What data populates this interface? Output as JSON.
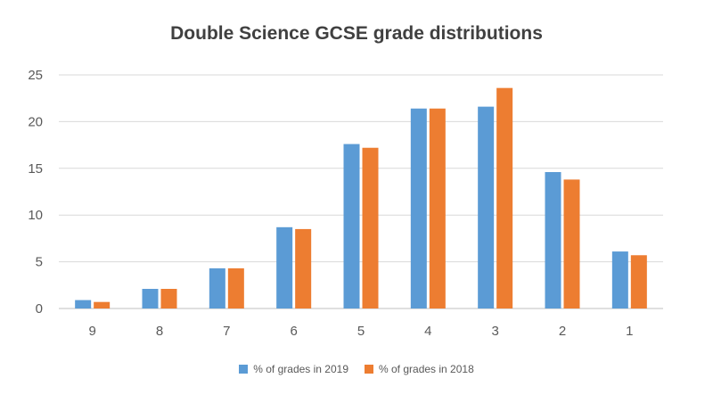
{
  "chart_data": {
    "type": "bar",
    "title": "Double Science GCSE grade distributions",
    "categories": [
      "9",
      "8",
      "7",
      "6",
      "5",
      "4",
      "3",
      "2",
      "1"
    ],
    "series": [
      {
        "name": "% of grades in 2019",
        "color": "#5b9bd5",
        "values": [
          0.9,
          2.1,
          4.3,
          8.7,
          17.6,
          21.4,
          21.6,
          14.6,
          6.1
        ]
      },
      {
        "name": "% of grades in 2018",
        "color": "#ed7d31",
        "values": [
          0.7,
          2.1,
          4.3,
          8.5,
          17.2,
          21.4,
          23.6,
          13.8,
          5.7
        ]
      }
    ],
    "ylim": [
      0,
      25
    ],
    "yticks": [
      "0",
      "5",
      "10",
      "15",
      "20",
      "25"
    ],
    "grid": true,
    "legend_position": "bottom"
  }
}
